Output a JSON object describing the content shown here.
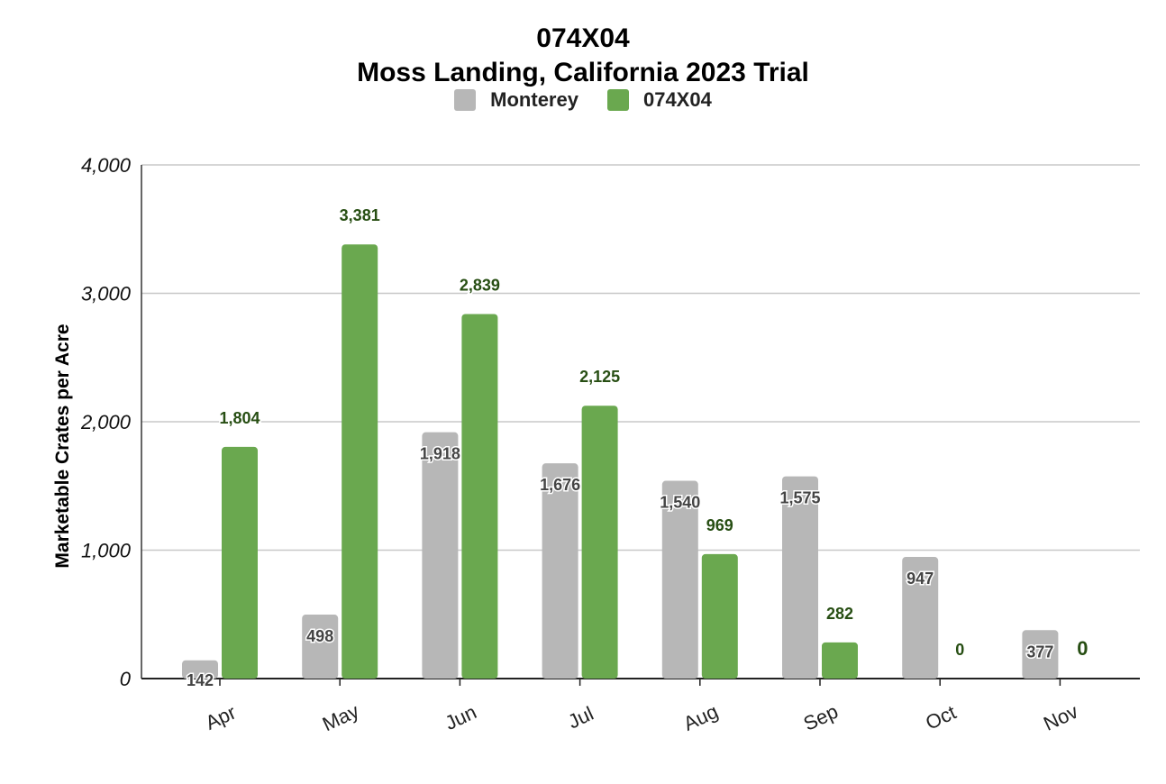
{
  "chart_data": {
    "type": "bar",
    "title": "074X04",
    "subtitle": "Moss Landing, California 2023 Trial",
    "xlabel": "",
    "ylabel": "Marketable Crates per Acre",
    "ylim": [
      0,
      4000
    ],
    "yticks": [
      "0",
      "1,000",
      "2,000",
      "3,000",
      "4,000"
    ],
    "grid": true,
    "legend_position": "top",
    "categories": [
      "Apr",
      "May",
      "Jun",
      "Jul",
      "Aug",
      "Sep",
      "Oct",
      "Nov"
    ],
    "series": [
      {
        "name": "Monterey",
        "color": "#b7b7b7",
        "label_color": "#444444",
        "values": [
          142,
          498,
          1918,
          1676,
          1540,
          1575,
          947,
          377
        ],
        "labels": [
          "142",
          "498",
          "1,918",
          "1,676",
          "1,540",
          "1,575",
          "947",
          "377"
        ]
      },
      {
        "name": "074X04",
        "color": "#6aa84f",
        "label_color": "#274e13",
        "values": [
          1804,
          3381,
          2839,
          2125,
          969,
          282,
          0,
          0
        ],
        "labels": [
          "1,804",
          "3,381",
          "2,839",
          "2,125",
          "969",
          "282",
          "0",
          "0"
        ]
      }
    ]
  }
}
